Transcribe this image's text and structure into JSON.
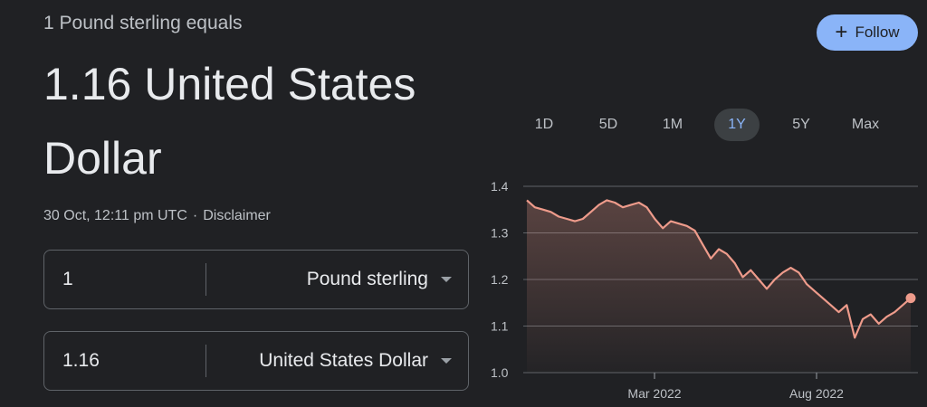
{
  "header": {
    "equals_line": "1 Pound sterling equals",
    "result": "1.16 United States Dollar",
    "timestamp": "30 Oct, 12:11 pm UTC",
    "separator": "·",
    "disclaimer": "Disclaimer"
  },
  "follow_button": {
    "label": "Follow",
    "bg_color": "#8ab4f8"
  },
  "converter": {
    "from": {
      "amount": "1",
      "currency": "Pound sterling"
    },
    "to": {
      "amount": "1.16",
      "currency": "United States Dollar"
    }
  },
  "range_tabs": {
    "items": [
      "1D",
      "5D",
      "1M",
      "1Y",
      "5Y",
      "Max"
    ],
    "selected": "1Y"
  },
  "chart_data": {
    "type": "line",
    "x_tick_labels": [
      "Mar 2022",
      "Aug 2022"
    ],
    "y_ticks": [
      "1.4",
      "1.3",
      "1.2",
      "1.1",
      "1.0"
    ],
    "ylim": [
      1.0,
      1.4
    ],
    "grid": true,
    "line_color": "#ee9b8b",
    "series": [
      {
        "values": [
          1.37,
          1.355,
          1.35,
          1.345,
          1.335,
          1.33,
          1.325,
          1.33,
          1.345,
          1.36,
          1.37,
          1.365,
          1.355,
          1.36,
          1.365,
          1.355,
          1.33,
          1.31,
          1.325,
          1.32,
          1.315,
          1.305,
          1.275,
          1.245,
          1.265,
          1.255,
          1.235,
          1.205,
          1.22,
          1.2,
          1.18,
          1.2,
          1.215,
          1.225,
          1.215,
          1.19,
          1.175,
          1.16,
          1.145,
          1.13,
          1.145,
          1.075,
          1.115,
          1.125,
          1.105,
          1.12,
          1.13,
          1.145,
          1.16
        ]
      }
    ]
  }
}
